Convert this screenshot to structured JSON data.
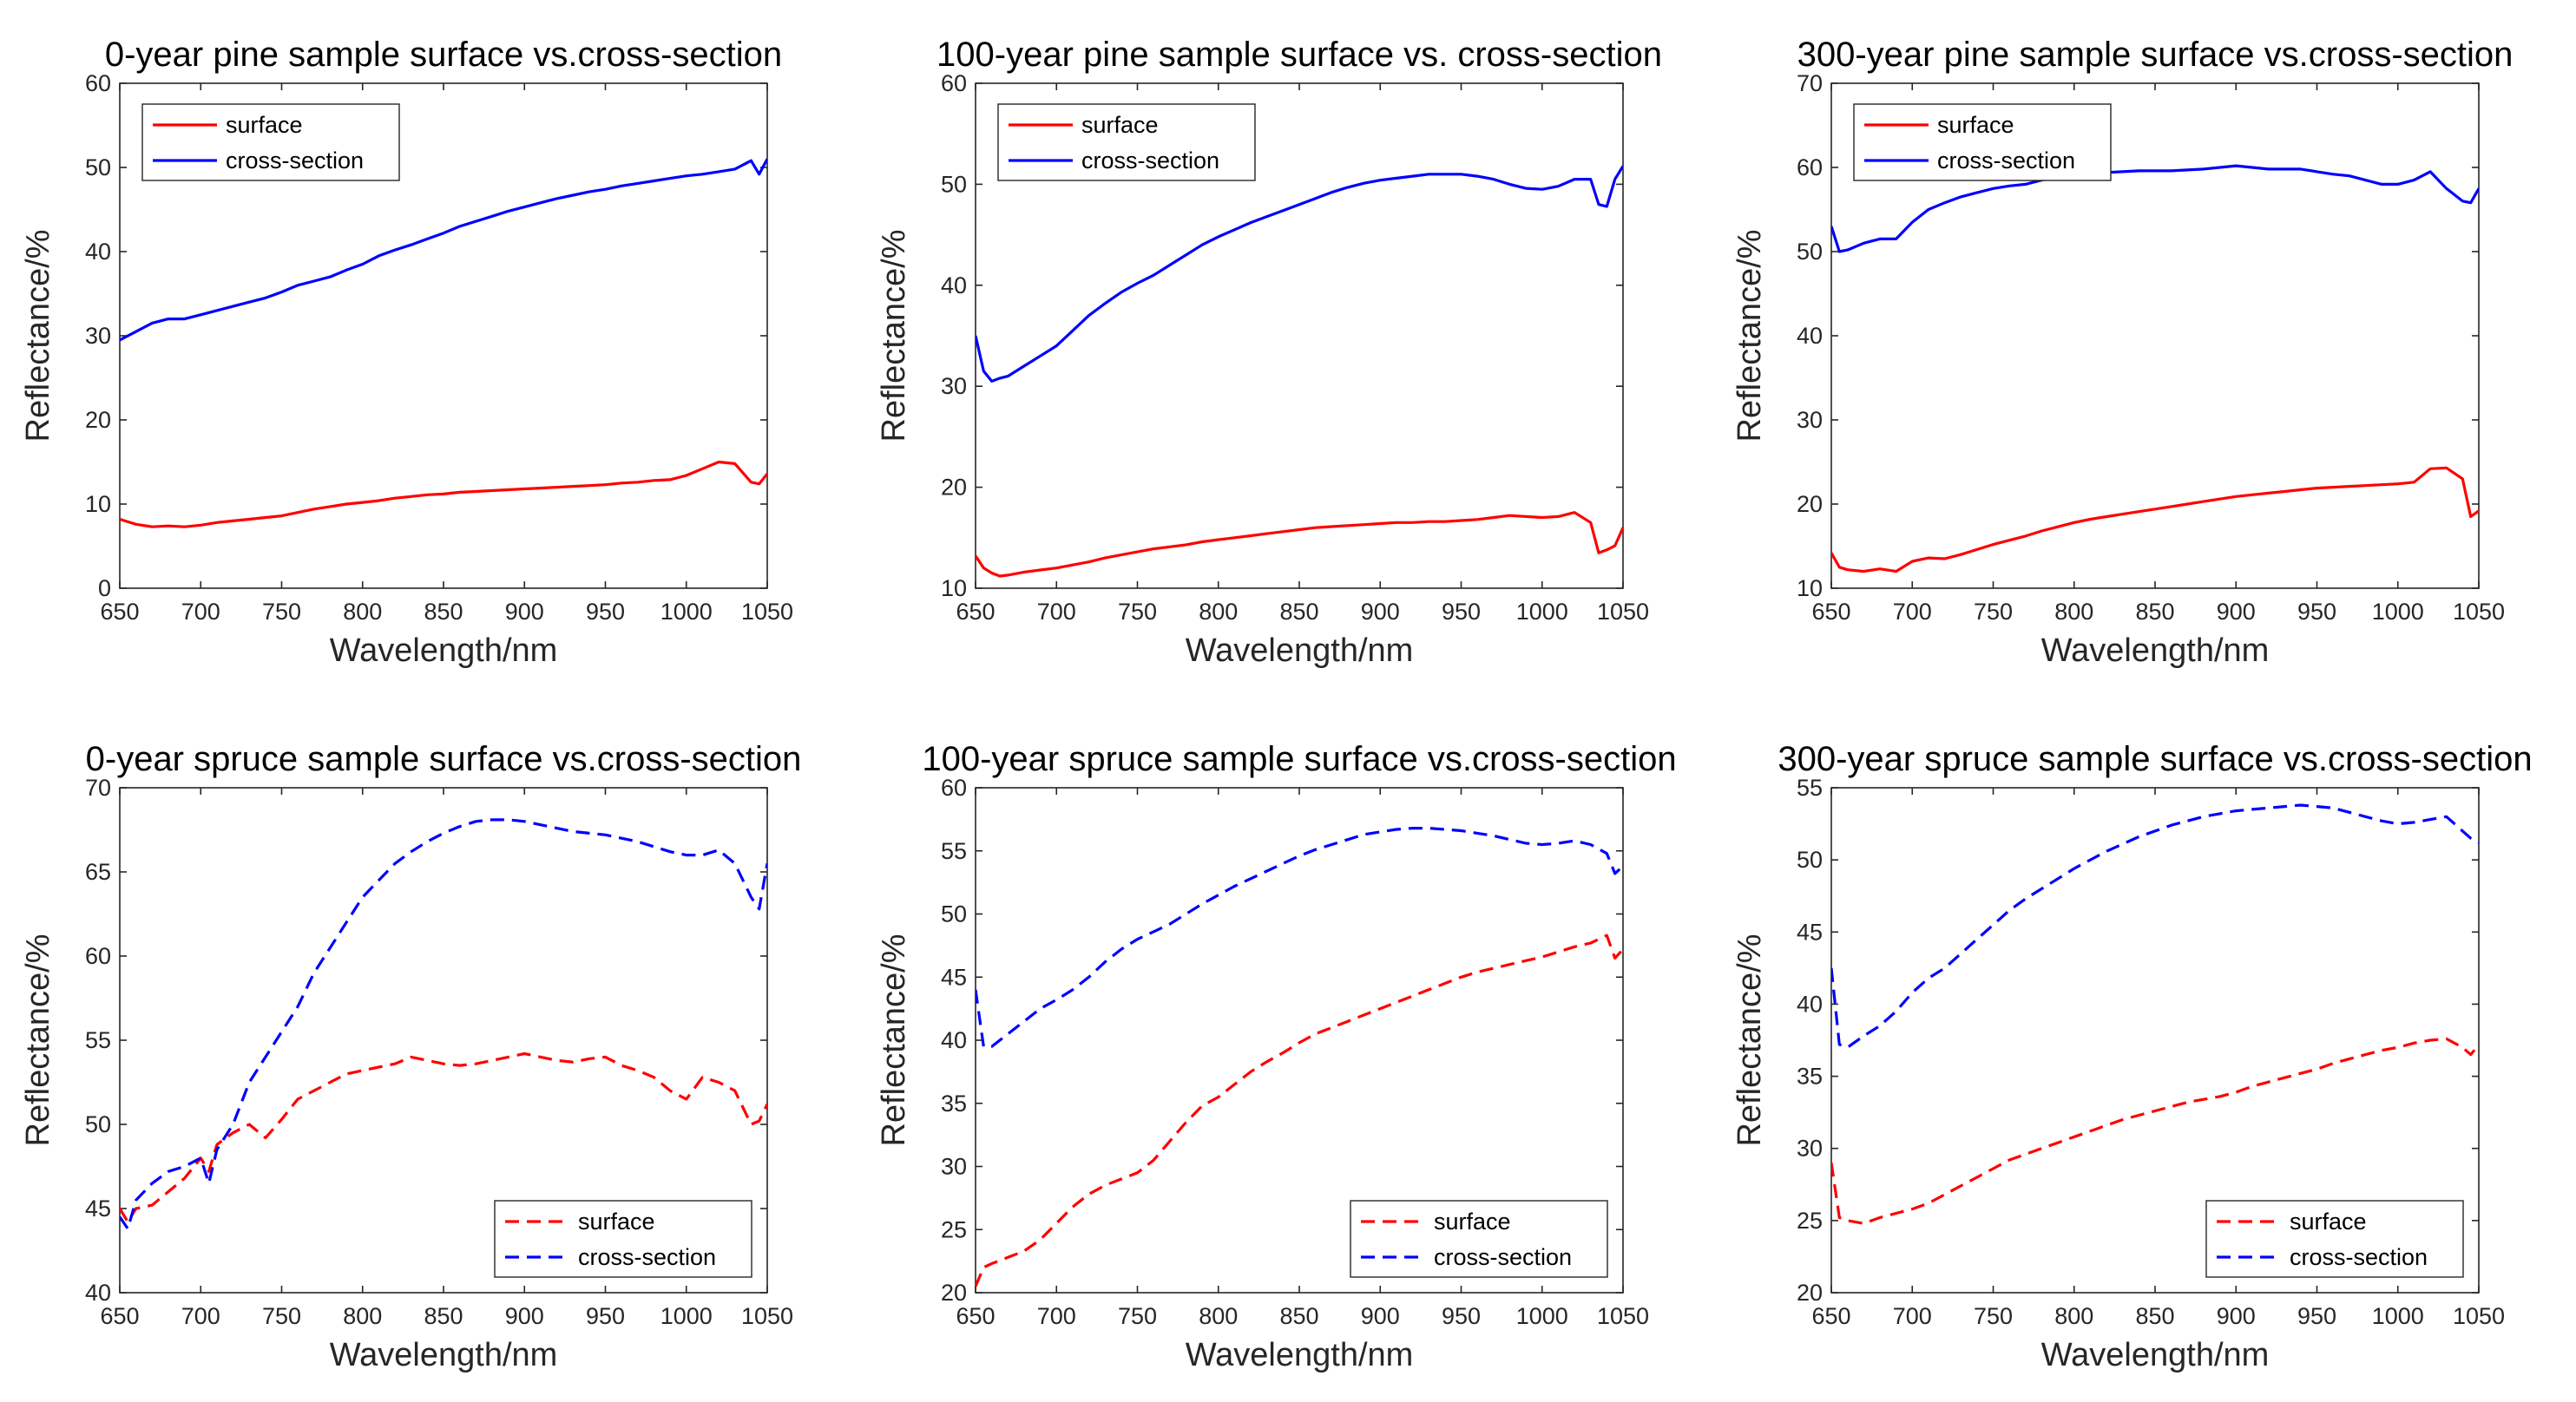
{
  "colors": {
    "surface": "#ff0000",
    "cross_section": "#0000ff",
    "axis": "#262626",
    "background": "#ffffff"
  },
  "chart_data": [
    {
      "type": "line",
      "title": "0-year pine sample surface vs.cross-section",
      "xlabel": "Wavelength/nm",
      "ylabel": "Reflectance/%",
      "xlim": [
        650,
        1050
      ],
      "ylim": [
        0,
        60
      ],
      "xticks": [
        650,
        700,
        750,
        800,
        850,
        900,
        950,
        1000,
        1050
      ],
      "yticks": [
        0,
        10,
        20,
        30,
        40,
        50,
        60
      ],
      "legend_location": "top-left",
      "line_style": "solid",
      "x": [
        650,
        660,
        670,
        680,
        690,
        700,
        710,
        720,
        730,
        740,
        750,
        760,
        770,
        780,
        790,
        800,
        810,
        820,
        830,
        840,
        850,
        860,
        870,
        880,
        890,
        900,
        910,
        920,
        930,
        940,
        950,
        960,
        970,
        980,
        990,
        1000,
        1010,
        1020,
        1030,
        1040,
        1045,
        1050
      ],
      "series": [
        {
          "name": "surface",
          "color": "#ff0000",
          "values": [
            8.2,
            7.6,
            7.3,
            7.4,
            7.3,
            7.5,
            7.8,
            8.0,
            8.2,
            8.4,
            8.6,
            9.0,
            9.4,
            9.7,
            10.0,
            10.2,
            10.4,
            10.7,
            10.9,
            11.1,
            11.2,
            11.4,
            11.5,
            11.6,
            11.7,
            11.8,
            11.9,
            12.0,
            12.1,
            12.2,
            12.3,
            12.5,
            12.6,
            12.8,
            12.9,
            13.4,
            14.2,
            15.0,
            14.8,
            12.6,
            12.4,
            13.6
          ]
        },
        {
          "name": "cross-section",
          "color": "#0000ff",
          "values": [
            29.5,
            30.5,
            31.5,
            32.0,
            32.0,
            32.5,
            33.0,
            33.5,
            34.0,
            34.5,
            35.2,
            36.0,
            36.5,
            37.0,
            37.8,
            38.5,
            39.5,
            40.2,
            40.8,
            41.5,
            42.2,
            43.0,
            43.6,
            44.2,
            44.8,
            45.3,
            45.8,
            46.3,
            46.7,
            47.1,
            47.4,
            47.8,
            48.1,
            48.4,
            48.7,
            49.0,
            49.2,
            49.5,
            49.8,
            50.8,
            49.2,
            51.0
          ]
        }
      ]
    },
    {
      "type": "line",
      "title": "100-year pine sample surface vs. cross-section",
      "xlabel": "Wavelength/nm",
      "ylabel": "Reflectance/%",
      "xlim": [
        650,
        1050
      ],
      "ylim": [
        10,
        60
      ],
      "xticks": [
        650,
        700,
        750,
        800,
        850,
        900,
        950,
        1000,
        1050
      ],
      "yticks": [
        10,
        20,
        30,
        40,
        50,
        60
      ],
      "legend_location": "top-left",
      "line_style": "solid",
      "x": [
        650,
        655,
        660,
        665,
        670,
        680,
        690,
        700,
        710,
        720,
        730,
        740,
        750,
        760,
        770,
        780,
        790,
        800,
        810,
        820,
        830,
        840,
        850,
        860,
        870,
        880,
        890,
        900,
        910,
        920,
        930,
        940,
        950,
        960,
        970,
        980,
        990,
        1000,
        1010,
        1020,
        1030,
        1035,
        1040,
        1045,
        1050
      ],
      "series": [
        {
          "name": "surface",
          "color": "#ff0000",
          "values": [
            13.2,
            12.0,
            11.5,
            11.2,
            11.3,
            11.6,
            11.8,
            12.0,
            12.3,
            12.6,
            13.0,
            13.3,
            13.6,
            13.9,
            14.1,
            14.3,
            14.6,
            14.8,
            15.0,
            15.2,
            15.4,
            15.6,
            15.8,
            16.0,
            16.1,
            16.2,
            16.3,
            16.4,
            16.5,
            16.5,
            16.6,
            16.6,
            16.7,
            16.8,
            17.0,
            17.2,
            17.1,
            17.0,
            17.1,
            17.5,
            16.5,
            13.5,
            13.8,
            14.2,
            16.0
          ]
        },
        {
          "name": "cross-section",
          "color": "#0000ff",
          "values": [
            35.0,
            31.5,
            30.5,
            30.8,
            31.0,
            32.0,
            33.0,
            34.0,
            35.5,
            37.0,
            38.2,
            39.3,
            40.2,
            41.0,
            42.0,
            43.0,
            44.0,
            44.8,
            45.5,
            46.2,
            46.8,
            47.4,
            48.0,
            48.6,
            49.2,
            49.7,
            50.1,
            50.4,
            50.6,
            50.8,
            51.0,
            51.0,
            51.0,
            50.8,
            50.5,
            50.0,
            49.6,
            49.5,
            49.8,
            50.5,
            50.5,
            48.0,
            47.8,
            50.5,
            51.8
          ]
        }
      ]
    },
    {
      "type": "line",
      "title": "300-year pine sample surface vs.cross-section",
      "xlabel": "Wavelength/nm",
      "ylabel": "Reflectance/%",
      "xlim": [
        650,
        1050
      ],
      "ylim": [
        10,
        70
      ],
      "xticks": [
        650,
        700,
        750,
        800,
        850,
        900,
        950,
        1000,
        1050
      ],
      "yticks": [
        10,
        20,
        30,
        40,
        50,
        60,
        70
      ],
      "legend_location": "top-left",
      "line_style": "solid",
      "x": [
        650,
        655,
        660,
        670,
        680,
        690,
        700,
        710,
        720,
        730,
        740,
        750,
        760,
        770,
        780,
        790,
        800,
        810,
        820,
        830,
        840,
        850,
        860,
        870,
        880,
        890,
        900,
        910,
        920,
        930,
        940,
        950,
        960,
        970,
        980,
        990,
        1000,
        1010,
        1020,
        1030,
        1040,
        1045,
        1050
      ],
      "series": [
        {
          "name": "surface",
          "color": "#ff0000",
          "values": [
            14.2,
            12.5,
            12.2,
            12.0,
            12.3,
            12.0,
            13.2,
            13.6,
            13.5,
            14.0,
            14.6,
            15.2,
            15.7,
            16.2,
            16.8,
            17.3,
            17.8,
            18.2,
            18.5,
            18.8,
            19.1,
            19.4,
            19.7,
            20.0,
            20.3,
            20.6,
            20.9,
            21.1,
            21.3,
            21.5,
            21.7,
            21.9,
            22.0,
            22.1,
            22.2,
            22.3,
            22.4,
            22.6,
            24.2,
            24.3,
            23.0,
            18.5,
            19.2
          ]
        },
        {
          "name": "cross-section",
          "color": "#0000ff",
          "values": [
            53.0,
            50.0,
            50.2,
            51.0,
            51.5,
            51.5,
            53.5,
            55.0,
            55.8,
            56.5,
            57.0,
            57.5,
            57.8,
            58.0,
            58.5,
            58.8,
            59.0,
            59.2,
            59.4,
            59.5,
            59.6,
            59.6,
            59.6,
            59.7,
            59.8,
            60.0,
            60.2,
            60.0,
            59.8,
            59.8,
            59.8,
            59.5,
            59.2,
            59.0,
            58.5,
            58.0,
            58.0,
            58.5,
            59.5,
            57.5,
            56.0,
            55.8,
            57.5
          ]
        }
      ]
    },
    {
      "type": "line",
      "title": "0-year spruce sample surface vs.cross-section",
      "xlabel": "Wavelength/nm",
      "ylabel": "Reflectance/%",
      "xlim": [
        650,
        1050
      ],
      "ylim": [
        40,
        70
      ],
      "xticks": [
        650,
        700,
        750,
        800,
        850,
        900,
        950,
        1000,
        1050
      ],
      "yticks": [
        40,
        45,
        50,
        55,
        60,
        65,
        70
      ],
      "legend_location": "bottom-right",
      "line_style": "dashed",
      "x": [
        650,
        655,
        660,
        670,
        680,
        690,
        700,
        705,
        710,
        720,
        730,
        740,
        750,
        760,
        770,
        780,
        790,
        800,
        810,
        820,
        830,
        840,
        850,
        860,
        870,
        880,
        890,
        900,
        910,
        920,
        930,
        940,
        950,
        960,
        970,
        980,
        990,
        1000,
        1010,
        1020,
        1030,
        1040,
        1045,
        1050
      ],
      "series": [
        {
          "name": "surface",
          "color": "#ff0000",
          "values": [
            45.0,
            44.2,
            45.0,
            45.2,
            46.0,
            46.8,
            48.0,
            47.2,
            48.8,
            49.5,
            50.0,
            49.2,
            50.3,
            51.5,
            52.0,
            52.5,
            53.0,
            53.2,
            53.4,
            53.6,
            54.0,
            53.8,
            53.6,
            53.5,
            53.6,
            53.8,
            54.0,
            54.2,
            54.0,
            53.8,
            53.7,
            53.9,
            54.0,
            53.5,
            53.2,
            52.8,
            52.0,
            51.5,
            52.8,
            52.5,
            52.0,
            50.0,
            50.2,
            51.2
          ]
        },
        {
          "name": "cross-section",
          "color": "#0000ff",
          "values": [
            44.5,
            43.8,
            45.5,
            46.5,
            47.2,
            47.5,
            48.0,
            46.5,
            48.5,
            50.0,
            52.5,
            54.0,
            55.5,
            57.0,
            59.0,
            60.5,
            62.0,
            63.5,
            64.5,
            65.5,
            66.2,
            66.8,
            67.3,
            67.7,
            68.0,
            68.1,
            68.1,
            68.0,
            67.8,
            67.6,
            67.4,
            67.3,
            67.2,
            67.0,
            66.8,
            66.5,
            66.2,
            66.0,
            66.0,
            66.3,
            65.5,
            63.5,
            62.8,
            65.5
          ]
        }
      ]
    },
    {
      "type": "line",
      "title": "100-year spruce sample surface vs.cross-section",
      "xlabel": "Wavelength/nm",
      "ylabel": "Reflectance/%",
      "xlim": [
        650,
        1050
      ],
      "ylim": [
        20,
        60
      ],
      "xticks": [
        650,
        700,
        750,
        800,
        850,
        900,
        950,
        1000,
        1050
      ],
      "yticks": [
        20,
        25,
        30,
        35,
        40,
        45,
        50,
        55,
        60
      ],
      "legend_location": "bottom-right",
      "line_style": "dashed",
      "x": [
        650,
        655,
        660,
        670,
        680,
        690,
        700,
        710,
        720,
        730,
        740,
        750,
        760,
        770,
        780,
        790,
        800,
        810,
        820,
        830,
        840,
        850,
        860,
        870,
        880,
        890,
        900,
        910,
        920,
        930,
        940,
        950,
        960,
        970,
        980,
        990,
        1000,
        1010,
        1020,
        1030,
        1040,
        1045,
        1050
      ],
      "series": [
        {
          "name": "surface",
          "color": "#ff0000",
          "values": [
            20.5,
            22.0,
            22.3,
            22.8,
            23.3,
            24.2,
            25.5,
            26.8,
            27.8,
            28.5,
            29.0,
            29.5,
            30.5,
            32.0,
            33.5,
            34.8,
            35.5,
            36.5,
            37.5,
            38.3,
            39.0,
            39.8,
            40.5,
            41.0,
            41.5,
            42.0,
            42.5,
            43.0,
            43.5,
            44.0,
            44.5,
            45.0,
            45.4,
            45.7,
            46.0,
            46.3,
            46.6,
            47.0,
            47.4,
            47.7,
            48.3,
            46.5,
            47.2
          ]
        },
        {
          "name": "cross-section",
          "color": "#0000ff",
          "values": [
            44.0,
            39.5,
            39.5,
            40.5,
            41.5,
            42.5,
            43.2,
            44.0,
            45.0,
            46.2,
            47.2,
            48.0,
            48.6,
            49.2,
            50.0,
            50.8,
            51.5,
            52.2,
            52.8,
            53.4,
            54.0,
            54.6,
            55.1,
            55.5,
            55.9,
            56.3,
            56.5,
            56.7,
            56.8,
            56.8,
            56.7,
            56.6,
            56.4,
            56.2,
            55.9,
            55.6,
            55.5,
            55.6,
            55.8,
            55.5,
            54.8,
            53.2,
            53.8
          ]
        }
      ]
    },
    {
      "type": "line",
      "title": "300-year spruce sample surface vs.cross-section",
      "xlabel": "Wavelength/nm",
      "ylabel": "Reflectance/%",
      "xlim": [
        650,
        1050
      ],
      "ylim": [
        20,
        55
      ],
      "xticks": [
        650,
        700,
        750,
        800,
        850,
        900,
        950,
        1000,
        1050
      ],
      "yticks": [
        20,
        25,
        30,
        35,
        40,
        45,
        50,
        55
      ],
      "legend_location": "bottom-right",
      "line_style": "dashed",
      "x": [
        650,
        655,
        660,
        670,
        680,
        690,
        700,
        710,
        720,
        730,
        740,
        750,
        760,
        770,
        780,
        790,
        800,
        810,
        820,
        830,
        840,
        850,
        860,
        870,
        880,
        890,
        900,
        910,
        920,
        930,
        940,
        950,
        960,
        970,
        980,
        990,
        1000,
        1010,
        1020,
        1030,
        1040,
        1045,
        1050
      ],
      "series": [
        {
          "name": "surface",
          "color": "#ff0000",
          "values": [
            29.0,
            25.2,
            25.0,
            24.8,
            25.2,
            25.5,
            25.8,
            26.2,
            26.8,
            27.4,
            28.0,
            28.6,
            29.2,
            29.6,
            30.0,
            30.4,
            30.8,
            31.2,
            31.6,
            32.0,
            32.3,
            32.6,
            32.9,
            33.2,
            33.4,
            33.6,
            33.9,
            34.3,
            34.6,
            34.9,
            35.2,
            35.5,
            35.9,
            36.2,
            36.5,
            36.8,
            37.0,
            37.3,
            37.5,
            37.6,
            37.0,
            36.5,
            37.2
          ]
        },
        {
          "name": "cross-section",
          "color": "#0000ff",
          "values": [
            42.5,
            37.2,
            37.0,
            37.8,
            38.5,
            39.5,
            40.8,
            41.8,
            42.5,
            43.5,
            44.5,
            45.5,
            46.5,
            47.3,
            48.0,
            48.7,
            49.4,
            50.0,
            50.6,
            51.1,
            51.6,
            52.0,
            52.4,
            52.7,
            53.0,
            53.2,
            53.4,
            53.5,
            53.6,
            53.7,
            53.8,
            53.7,
            53.6,
            53.3,
            53.0,
            52.7,
            52.5,
            52.6,
            52.8,
            53.0,
            52.0,
            51.5,
            51.2
          ]
        }
      ]
    }
  ]
}
